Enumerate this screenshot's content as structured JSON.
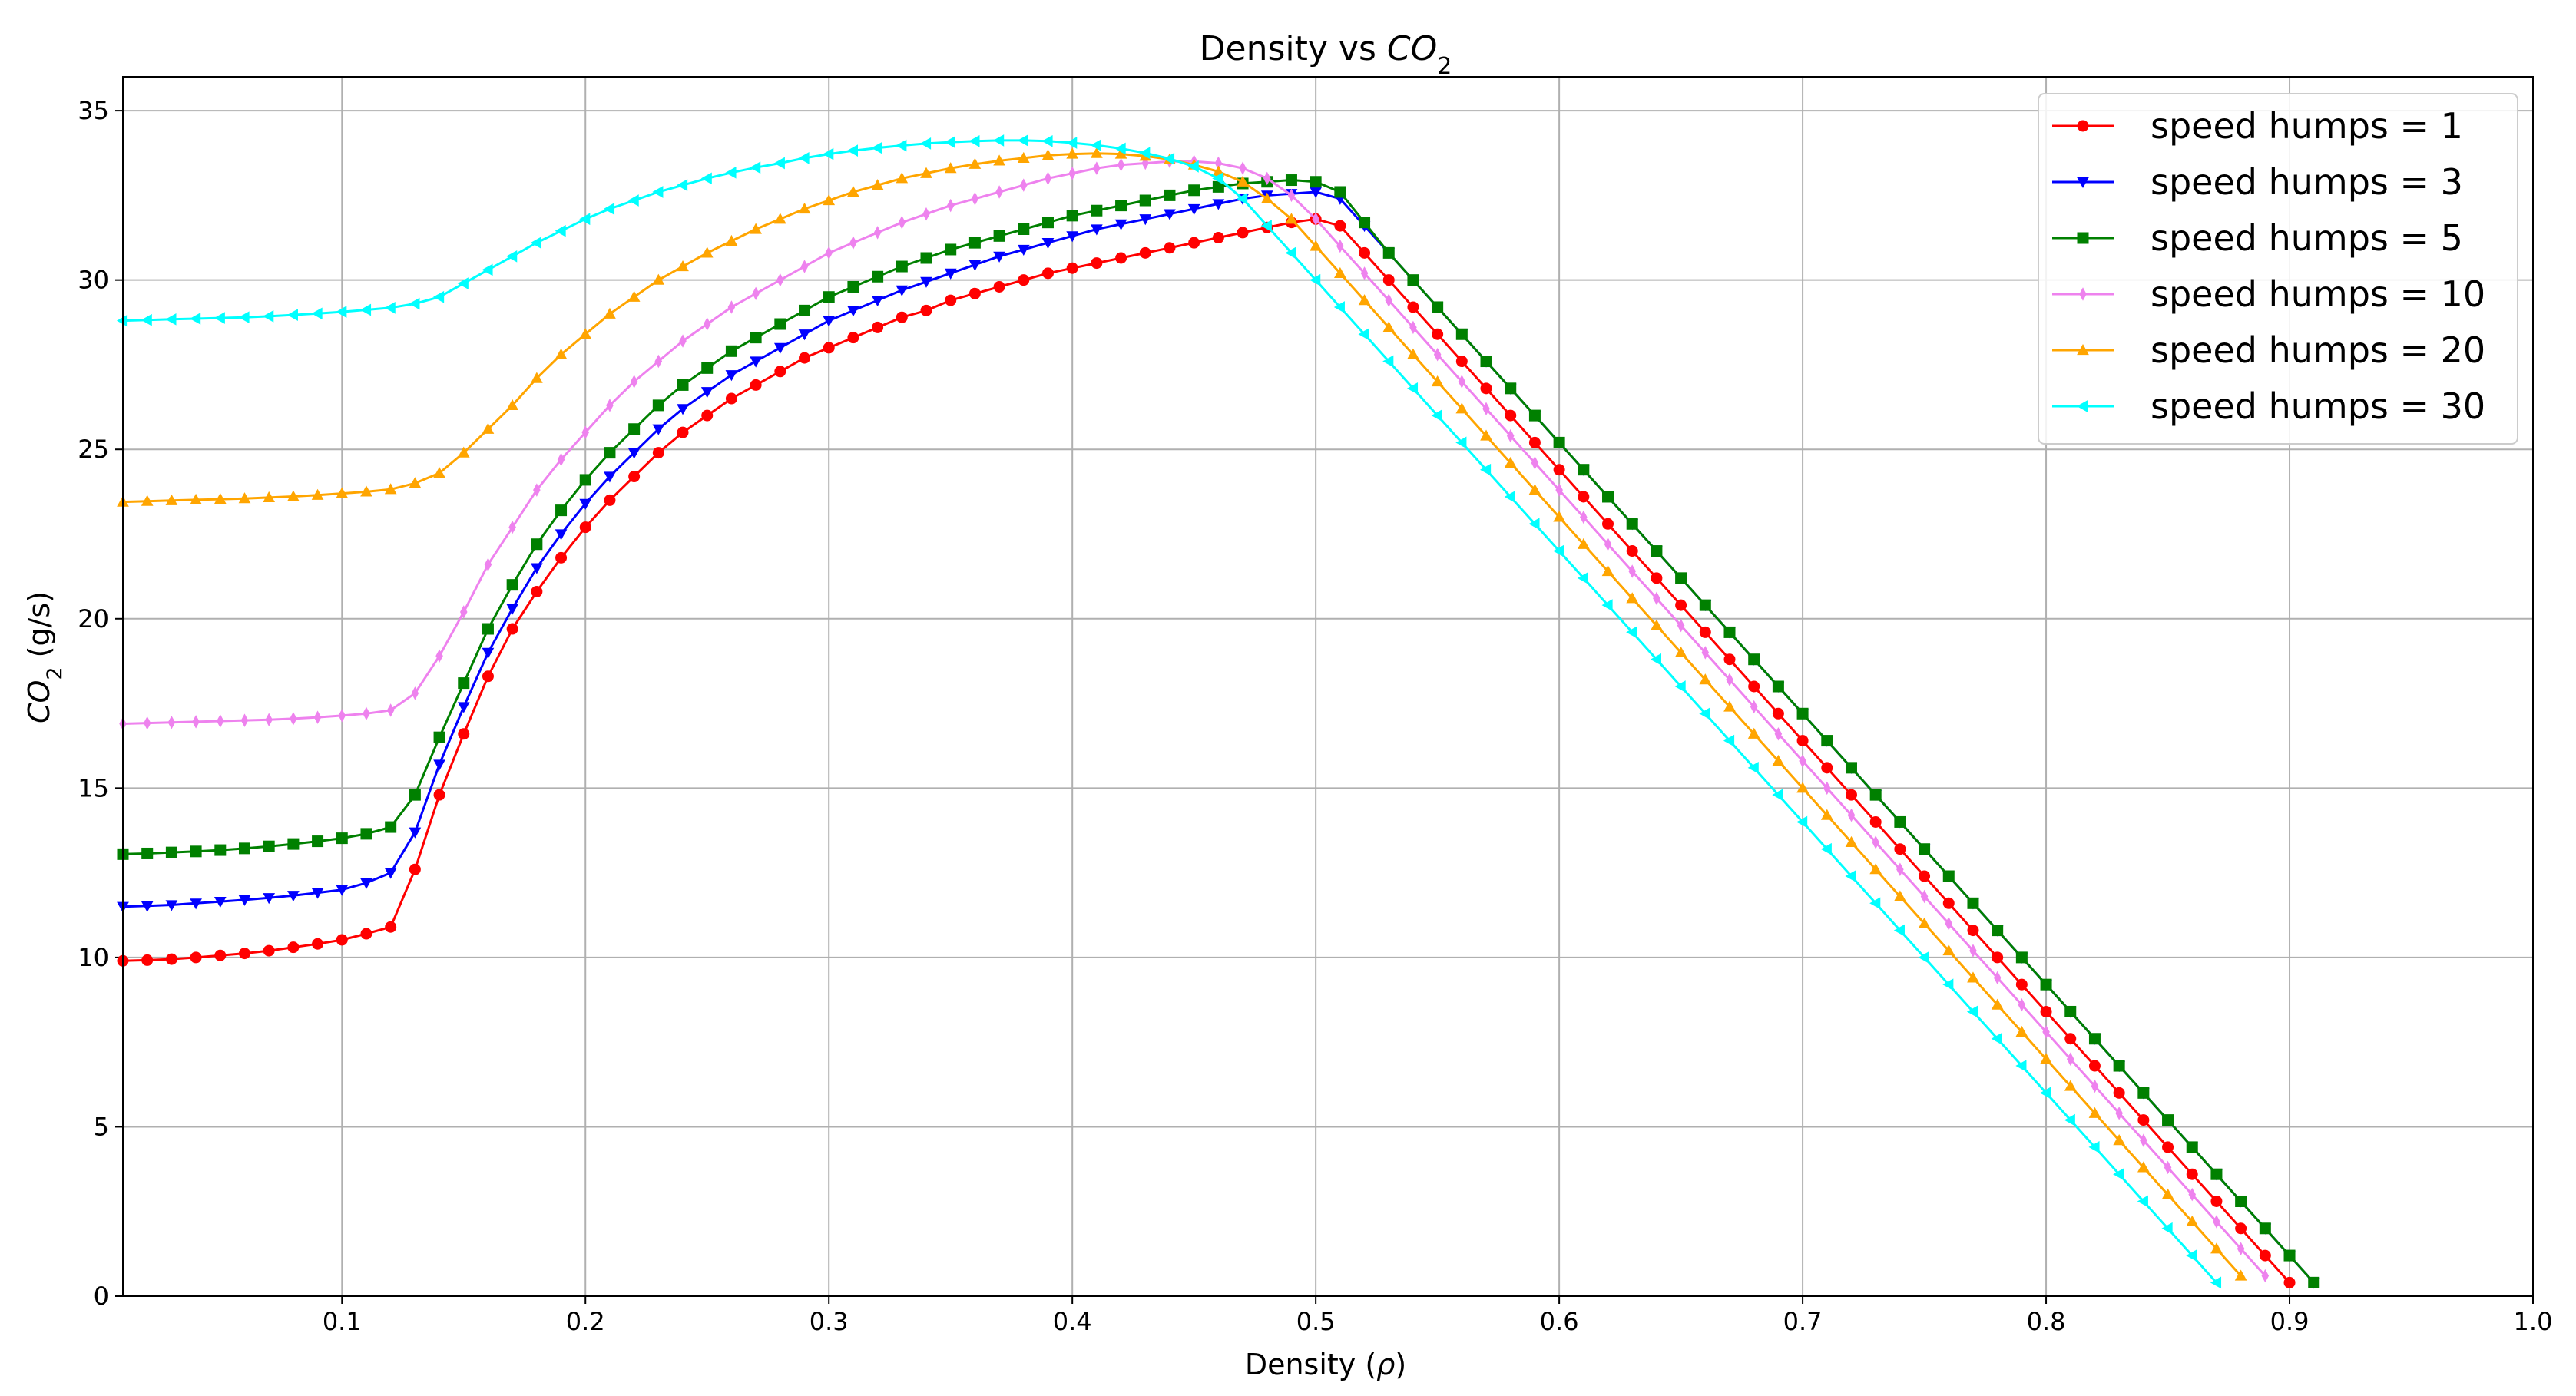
{
  "chart_data": {
    "type": "line",
    "title_prefix": "Density vs ",
    "title_var": "CO",
    "title_sub": "2",
    "xlabel_prefix": "Density (",
    "xlabel_var": "ρ",
    "xlabel_suffix": ")",
    "ylabel_var": "CO",
    "ylabel_sub": "2",
    "ylabel_suffix": " (g/s)",
    "xlim": [
      0.01,
      1.0
    ],
    "ylim": [
      0,
      36
    ],
    "xticks": [
      0.1,
      0.2,
      0.3,
      0.4,
      0.5,
      0.6,
      0.7,
      0.8,
      0.9,
      1.0
    ],
    "xtick_labels": [
      "0.1",
      "0.2",
      "0.3",
      "0.4",
      "0.5",
      "0.6",
      "0.7",
      "0.8",
      "0.9",
      "1.0"
    ],
    "yticks": [
      0,
      5,
      10,
      15,
      20,
      25,
      30,
      35
    ],
    "ytick_labels": [
      "0",
      "5",
      "10",
      "15",
      "20",
      "25",
      "30",
      "35"
    ],
    "grid": true,
    "legend_position": "top-right",
    "x_start": 0.01,
    "x_step": 0.01,
    "series": [
      {
        "name": "speed humps = 1",
        "color": "#ff0000",
        "marker": "circle",
        "values": [
          9.9,
          9.92,
          9.95,
          10.0,
          10.06,
          10.12,
          10.2,
          10.3,
          10.4,
          10.52,
          10.7,
          10.9,
          12.6,
          14.8,
          16.6,
          18.3,
          19.7,
          20.8,
          21.8,
          22.7,
          23.5,
          24.2,
          24.9,
          25.5,
          26.0,
          26.5,
          26.9,
          27.3,
          27.7,
          28.0,
          28.3,
          28.6,
          28.9,
          29.1,
          29.4,
          29.6,
          29.8,
          30.0,
          30.2,
          30.35,
          30.5,
          30.65,
          30.8,
          30.95,
          31.1,
          31.25,
          31.4,
          31.55,
          31.7,
          31.8,
          31.6,
          30.8,
          30.0,
          29.2,
          28.4,
          27.6,
          26.8,
          26.0,
          25.2,
          24.4,
          23.6,
          22.8,
          22.0,
          21.2,
          20.4,
          19.6,
          18.8,
          18.0,
          17.2,
          16.4,
          15.6,
          14.8,
          14.0,
          13.2,
          12.4,
          11.6,
          10.8,
          10.0,
          9.2,
          8.4,
          7.6,
          6.8,
          6.0,
          5.2,
          4.4,
          3.6,
          2.8,
          2.0,
          1.2,
          0.4
        ]
      },
      {
        "name": "speed humps = 3",
        "color": "#0000ff",
        "marker": "triangle-down",
        "values": [
          11.5,
          11.52,
          11.55,
          11.6,
          11.65,
          11.7,
          11.76,
          11.83,
          11.91,
          12.0,
          12.2,
          12.5,
          13.7,
          15.7,
          17.4,
          19.0,
          20.3,
          21.5,
          22.5,
          23.4,
          24.2,
          24.9,
          25.6,
          26.2,
          26.7,
          27.2,
          27.6,
          28.0,
          28.4,
          28.8,
          29.1,
          29.4,
          29.7,
          29.95,
          30.2,
          30.45,
          30.7,
          30.9,
          31.1,
          31.3,
          31.5,
          31.65,
          31.8,
          31.95,
          32.1,
          32.25,
          32.4,
          32.5,
          32.55,
          32.6,
          32.4,
          31.6,
          30.8,
          30.0,
          29.2,
          28.4,
          27.6,
          26.8,
          26.0,
          25.2,
          24.4,
          23.6,
          22.8,
          22.0,
          21.2,
          20.4,
          19.6,
          18.8,
          18.0,
          17.2,
          16.4,
          15.6,
          14.8,
          14.0,
          13.2,
          12.4,
          11.6,
          10.8,
          10.0,
          9.2,
          8.4,
          7.6,
          6.8,
          6.0,
          5.2,
          4.4,
          3.6,
          2.8,
          2.0,
          1.2,
          0.4
        ]
      },
      {
        "name": "speed humps = 5",
        "color": "#008000",
        "marker": "square",
        "values": [
          13.05,
          13.07,
          13.1,
          13.13,
          13.17,
          13.22,
          13.28,
          13.35,
          13.43,
          13.52,
          13.65,
          13.85,
          14.8,
          16.5,
          18.1,
          19.7,
          21.0,
          22.2,
          23.2,
          24.1,
          24.9,
          25.6,
          26.3,
          26.9,
          27.4,
          27.9,
          28.3,
          28.7,
          29.1,
          29.5,
          29.8,
          30.1,
          30.4,
          30.65,
          30.9,
          31.1,
          31.3,
          31.5,
          31.7,
          31.9,
          32.05,
          32.2,
          32.35,
          32.5,
          32.65,
          32.75,
          32.85,
          32.9,
          32.95,
          32.9,
          32.6,
          31.7,
          30.8,
          30.0,
          29.2,
          28.4,
          27.6,
          26.8,
          26.0,
          25.2,
          24.4,
          23.6,
          22.8,
          22.0,
          21.2,
          20.4,
          19.6,
          18.8,
          18.0,
          17.2,
          16.4,
          15.6,
          14.8,
          14.0,
          13.2,
          12.4,
          11.6,
          10.8,
          10.0,
          9.2,
          8.4,
          7.6,
          6.8,
          6.0,
          5.2,
          4.4,
          3.6,
          2.8,
          2.0,
          1.2,
          0.4
        ]
      },
      {
        "name": "speed humps = 10",
        "color": "#ee82ee",
        "marker": "thin-diamond",
        "values": [
          16.9,
          16.92,
          16.94,
          16.96,
          16.98,
          17.0,
          17.02,
          17.05,
          17.09,
          17.14,
          17.2,
          17.3,
          17.8,
          18.9,
          20.2,
          21.6,
          22.7,
          23.8,
          24.7,
          25.5,
          26.3,
          27.0,
          27.6,
          28.2,
          28.7,
          29.2,
          29.6,
          30.0,
          30.4,
          30.8,
          31.1,
          31.4,
          31.7,
          31.95,
          32.2,
          32.4,
          32.6,
          32.8,
          33.0,
          33.15,
          33.3,
          33.4,
          33.45,
          33.5,
          33.5,
          33.45,
          33.3,
          33.0,
          32.5,
          31.8,
          31.0,
          30.2,
          29.4,
          28.6,
          27.8,
          27.0,
          26.2,
          25.4,
          24.6,
          23.8,
          23.0,
          22.2,
          21.4,
          20.6,
          19.8,
          19.0,
          18.2,
          17.4,
          16.6,
          15.8,
          15.0,
          14.2,
          13.4,
          12.6,
          11.8,
          11.0,
          10.2,
          9.4,
          8.6,
          7.8,
          7.0,
          6.2,
          5.4,
          4.6,
          3.8,
          3.0,
          2.2,
          1.4,
          0.6
        ]
      },
      {
        "name": "speed humps = 20",
        "color": "#ffa500",
        "marker": "triangle-up",
        "values": [
          23.45,
          23.47,
          23.49,
          23.51,
          23.53,
          23.55,
          23.58,
          23.61,
          23.65,
          23.7,
          23.75,
          23.82,
          24.0,
          24.3,
          24.9,
          25.6,
          26.3,
          27.1,
          27.8,
          28.4,
          29.0,
          29.5,
          30.0,
          30.4,
          30.8,
          31.15,
          31.5,
          31.8,
          32.1,
          32.35,
          32.6,
          32.8,
          33.0,
          33.15,
          33.3,
          33.42,
          33.52,
          33.6,
          33.68,
          33.72,
          33.74,
          33.72,
          33.66,
          33.56,
          33.4,
          33.2,
          32.9,
          32.4,
          31.8,
          31.0,
          30.2,
          29.4,
          28.6,
          27.8,
          27.0,
          26.2,
          25.4,
          24.6,
          23.8,
          23.0,
          22.2,
          21.4,
          20.6,
          19.8,
          19.0,
          18.2,
          17.4,
          16.6,
          15.8,
          15.0,
          14.2,
          13.4,
          12.6,
          11.8,
          11.0,
          10.2,
          9.4,
          8.6,
          7.8,
          7.0,
          6.2,
          5.4,
          4.6,
          3.8,
          3.0,
          2.2,
          1.4,
          0.6
        ]
      },
      {
        "name": "speed humps = 30",
        "color": "#00ffff",
        "marker": "triangle-left",
        "values": [
          28.8,
          28.82,
          28.84,
          28.86,
          28.88,
          28.9,
          28.93,
          28.97,
          29.01,
          29.06,
          29.12,
          29.18,
          29.3,
          29.5,
          29.9,
          30.3,
          30.7,
          31.1,
          31.45,
          31.8,
          32.1,
          32.35,
          32.6,
          32.8,
          33.0,
          33.17,
          33.32,
          33.45,
          33.6,
          33.72,
          33.82,
          33.9,
          33.97,
          34.03,
          34.07,
          34.1,
          34.12,
          34.12,
          34.1,
          34.05,
          33.98,
          33.88,
          33.75,
          33.58,
          33.35,
          33.0,
          32.4,
          31.6,
          30.8,
          30.0,
          29.2,
          28.4,
          27.6,
          26.8,
          26.0,
          25.2,
          24.4,
          23.6,
          22.8,
          22.0,
          21.2,
          20.4,
          19.6,
          18.8,
          18.0,
          17.2,
          16.4,
          15.6,
          14.8,
          14.0,
          13.2,
          12.4,
          11.6,
          10.8,
          10.0,
          9.2,
          8.4,
          7.6,
          6.8,
          6.0,
          5.2,
          4.4,
          3.6,
          2.8,
          2.0,
          1.2,
          0.4
        ]
      }
    ]
  }
}
